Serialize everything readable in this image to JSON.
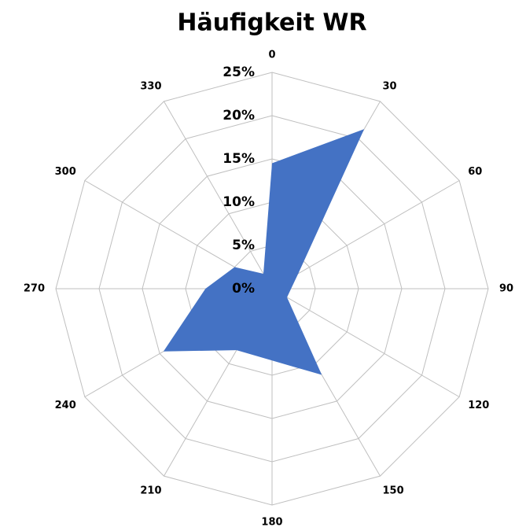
{
  "chart_data": {
    "type": "radar",
    "title": "Häufigkeit WR",
    "categories": [
      "0",
      "30",
      "60",
      "90",
      "120",
      "150",
      "180",
      "210",
      "240",
      "270",
      "300",
      "330"
    ],
    "series": [
      {
        "name": "Häufigkeit",
        "color": "#4472c4",
        "values": [
          14.5,
          21.3,
          3.5,
          2.2,
          2,
          11.5,
          8.3,
          8.2,
          14.5,
          7.7,
          5,
          2
        ]
      }
    ],
    "ylim": [
      0,
      25
    ],
    "yticks": [
      {
        "value": 0,
        "label": "0%"
      },
      {
        "value": 5,
        "label": "5%"
      },
      {
        "value": 10,
        "label": "10%"
      },
      {
        "value": 15,
        "label": "15%"
      },
      {
        "value": 20,
        "label": "20%"
      },
      {
        "value": 25,
        "label": "25%"
      }
    ],
    "grid": true
  }
}
